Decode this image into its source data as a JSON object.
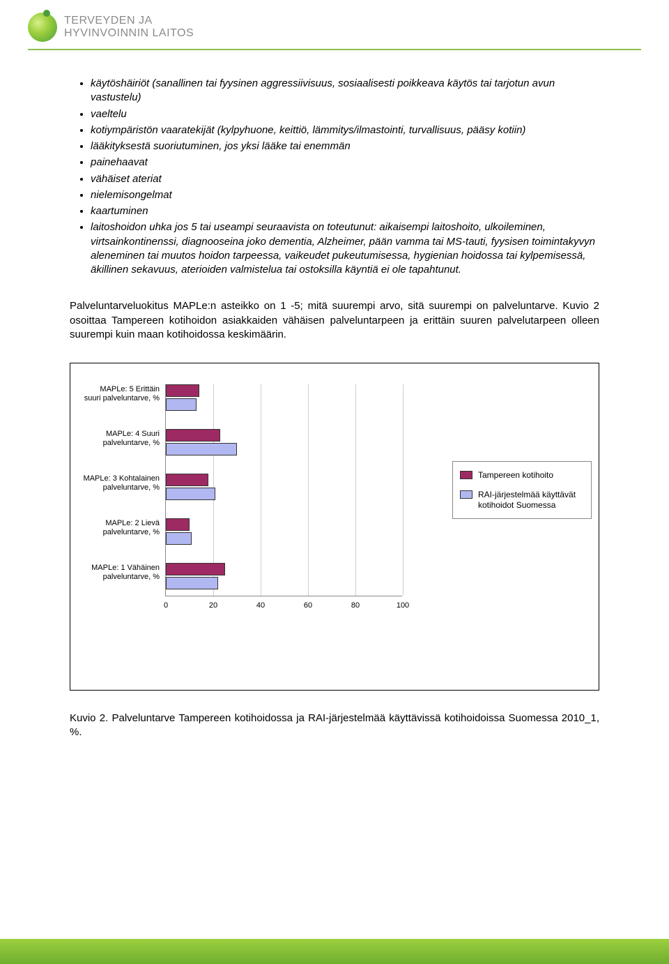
{
  "header": {
    "org_line1": "TERVEYDEN JA",
    "org_line2": "HYVINVOINNIN LAITOS"
  },
  "bullets": [
    "käytöshäiriöt (sanallinen tai fyysinen aggressiivisuus, sosiaalisesti poikkeava käytös tai tarjotun avun vastustelu)",
    "vaeltelu",
    "kotiympäristön vaaratekijät (kylpyhuone, keittiö, lämmitys/ilmastointi, turvallisuus, pääsy kotiin)",
    "lääkityksestä suoriutuminen, jos yksi lääke tai enemmän",
    "painehaavat",
    "vähäiset ateriat",
    "nielemisongelmat",
    "kaartuminen",
    "laitoshoidon uhka   jos 5 tai useampi seuraavista on toteutunut: aikaisempi laitoshoito, ulkoileminen, virtsainkontinenssi, diagnooseina joko dementia, Alzheimer, pään vamma tai MS-tauti, fyysisen toimintakyvyn aleneminen tai muutos hoidon tarpeessa, vaikeudet pukeutumisessa, hygienian hoidossa tai kylpemisessä, äkillinen sekavuus, aterioiden valmistelua tai ostoksilla käyntiä ei ole tapahtunut."
  ],
  "paragraph": "Palveluntarveluokitus MAPLe:n asteikko on 1 -5; mitä suurempi arvo, sitä suurempi on palveluntarve. Kuvio 2 osoittaa Tampereen kotihoidon asiakkaiden vähäisen palveluntarpeen ja erittäin suuren palvelutarpeen olleen suurempi kuin maan kotihoidossa keskimäärin.",
  "chart": {
    "type": "bar-horizontal-grouped",
    "xlim": [
      0,
      100
    ],
    "xtick_step": 20,
    "xticks": [
      "0",
      "20",
      "40",
      "60",
      "80",
      "100"
    ],
    "grid_color": "#cfcfcf",
    "axis_color": "#888888",
    "bar_border": "#333333",
    "label_fontsize": 11,
    "series": [
      {
        "name": "Tampereen kotihoito",
        "color": "#9e2a63"
      },
      {
        "name": "RAI-järjestelmää käyttävät kotihoidot Suomessa",
        "color": "#b1b7f0"
      }
    ],
    "categories": [
      {
        "label": "MAPLe: 5 Erittäin suuri palveluntarve, %",
        "values": [
          14,
          13
        ]
      },
      {
        "label": "MAPLe: 4 Suuri palveluntarve, %",
        "values": [
          23,
          30
        ]
      },
      {
        "label": "MAPLe: 3 Kohtalainen palveluntarve, %",
        "values": [
          18,
          21
        ]
      },
      {
        "label": "MAPLe: 2 Lievä palveluntarve, %",
        "values": [
          10,
          11
        ]
      },
      {
        "label": "MAPLe: 1 Vähäinen palveluntarve, %",
        "values": [
          25,
          22
        ]
      }
    ]
  },
  "caption": "Kuvio 2. Palveluntarve Tampereen kotihoidossa ja RAI-järjestelmää käyttävissä kotihoidoissa Suomessa 2010_1, %."
}
